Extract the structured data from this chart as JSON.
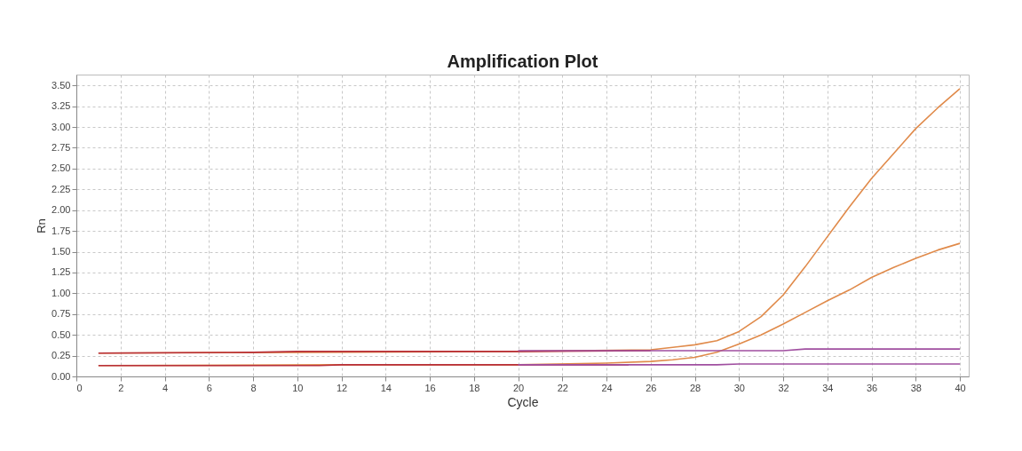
{
  "chart_data": {
    "type": "line",
    "title": "Amplification Plot",
    "xlabel": "Cycle",
    "ylabel": "Rn",
    "xlim": [
      0,
      40.4
    ],
    "xticks": [
      0,
      2,
      4,
      6,
      8,
      10,
      12,
      14,
      16,
      18,
      20,
      22,
      24,
      26,
      28,
      30,
      32,
      34,
      36,
      38,
      40
    ],
    "ylim": [
      0,
      3.63
    ],
    "yticks": [
      {
        "value": 0,
        "label": "0.00"
      },
      {
        "value": 0.25,
        "label": "0.25"
      },
      {
        "value": 0.5,
        "label": "0.50"
      },
      {
        "value": 0.75,
        "label": "0.75"
      },
      {
        "value": 1,
        "label": "1.00"
      },
      {
        "value": 1.25,
        "label": "1.25"
      },
      {
        "value": 1.5,
        "label": "1.50"
      },
      {
        "value": 1.75,
        "label": "1.75"
      },
      {
        "value": 2,
        "label": "2.00"
      },
      {
        "value": 2.25,
        "label": "2.25"
      },
      {
        "value": 2.5,
        "label": "2.50"
      },
      {
        "value": 2.75,
        "label": "2.75"
      },
      {
        "value": 3,
        "label": "3.00"
      },
      {
        "value": 3.25,
        "label": "3.25"
      },
      {
        "value": 3.5,
        "label": "3.50"
      }
    ],
    "grid": true,
    "line_style": "solid",
    "marker": "none",
    "series": [
      {
        "color": "#e08a4a",
        "x": [
          1,
          10,
          20,
          26,
          27,
          28,
          29,
          30,
          31,
          32,
          33,
          34,
          35,
          36,
          37,
          38,
          39,
          40
        ],
        "values": [
          0.28,
          0.29,
          0.3,
          0.32,
          0.35,
          0.38,
          0.43,
          0.54,
          0.72,
          0.98,
          1.32,
          1.68,
          2.04,
          2.38,
          2.68,
          2.98,
          3.23,
          3.46
        ]
      },
      {
        "color": "#e08a4a",
        "x": [
          1,
          12,
          20,
          24,
          26,
          27,
          28,
          29,
          30,
          31,
          32,
          33,
          34,
          35,
          36,
          37,
          38,
          39,
          40
        ],
        "values": [
          0.13,
          0.14,
          0.14,
          0.16,
          0.18,
          0.2,
          0.23,
          0.29,
          0.39,
          0.5,
          0.63,
          0.77,
          0.91,
          1.04,
          1.19,
          1.31,
          1.42,
          1.52,
          1.6
        ]
      },
      {
        "color": "#b8303a",
        "x": [
          1,
          8,
          10,
          20,
          26
        ],
        "values": [
          0.28,
          0.29,
          0.3,
          0.3,
          0.31
        ]
      },
      {
        "color": "#b8303a",
        "x": [
          1,
          11,
          12,
          20,
          25
        ],
        "values": [
          0.13,
          0.13,
          0.14,
          0.14,
          0.14
        ]
      },
      {
        "color": "#a04fa0",
        "x": [
          20,
          26,
          32,
          33,
          40
        ],
        "values": [
          0.31,
          0.31,
          0.31,
          0.33,
          0.33
        ]
      },
      {
        "color": "#a04fa0",
        "x": [
          20,
          29,
          30,
          40
        ],
        "values": [
          0.14,
          0.14,
          0.15,
          0.15
        ]
      }
    ]
  }
}
